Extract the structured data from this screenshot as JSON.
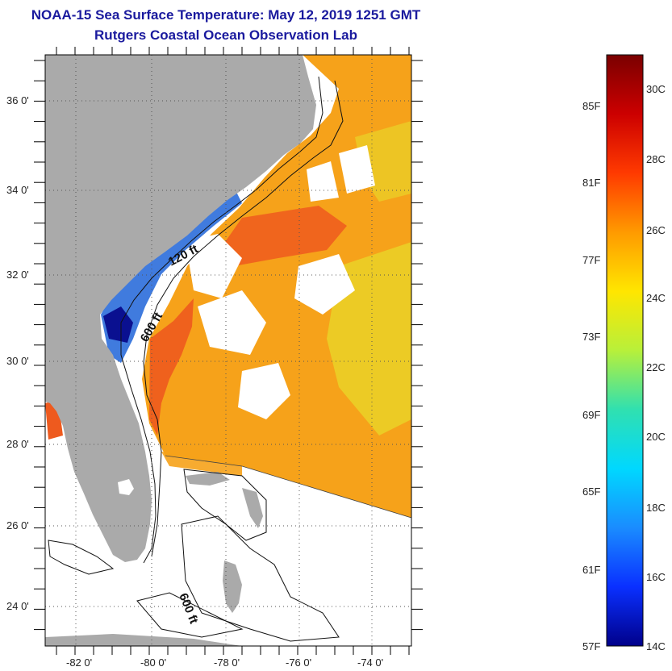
{
  "title": {
    "line1": "NOAA-15 Sea Surface Temperature:  May 12, 2019 1251 GMT",
    "line2": "Rutgers Coastal Ocean Observation Lab"
  },
  "map": {
    "lat_labels": [
      "36 0'",
      "34 0'",
      "32 0'",
      "30 0'",
      "28 0'",
      "26 0'",
      "24 0'"
    ],
    "lon_labels": [
      "-82 0'",
      "-80 0'",
      "-78 0'",
      "-76 0'",
      "-74 0'"
    ],
    "annotations": {
      "isobath_120": "120 ft",
      "isobath_600_north": "600 ft",
      "isobath_600_south": "600 ft"
    },
    "colors": {
      "land": "#aaaaaa",
      "ocean_nodata": "#ffffff",
      "warm": "#f6a21a",
      "hot": "#ee5a1e",
      "cool": "#1f64d8",
      "cold": "#0a1090",
      "mild": "#e8d82a"
    }
  },
  "colorbar": {
    "fahrenheit_labels": [
      "85F",
      "81F",
      "77F",
      "73F",
      "69F",
      "65F",
      "61F",
      "57F"
    ],
    "celsius_labels": [
      "30C",
      "28C",
      "26C",
      "24C",
      "22C",
      "20C",
      "18C",
      "16C",
      "14C"
    ],
    "stops": [
      "#7a0000",
      "#cc0000",
      "#ff3a00",
      "#ff9a00",
      "#ffe600",
      "#b8f03a",
      "#30e0b0",
      "#00d8ff",
      "#1a8cff",
      "#0a30ff",
      "#00008a"
    ]
  }
}
